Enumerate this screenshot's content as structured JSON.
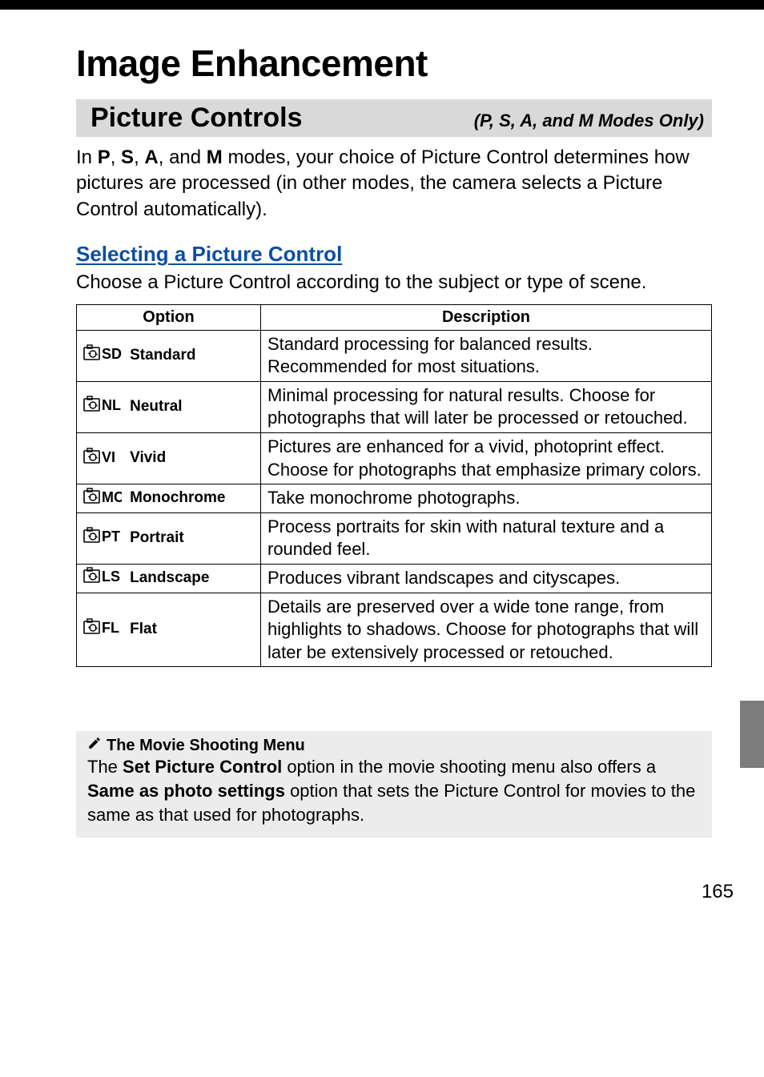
{
  "top_bar": {
    "color": "#000000",
    "height": 12
  },
  "chapter": {
    "title": "Image Enhancement"
  },
  "section": {
    "title": "Picture Controls",
    "subtitle": "(P, S, A, and M Modes Only)",
    "banner_bg": "#d9d9d9"
  },
  "intro": {
    "prefix": "In ",
    "modes": [
      "P",
      "S",
      "A",
      "M"
    ],
    "rest": " modes, your choice of Picture Control determines how pictures are processed (in other modes, the camera selects a Picture Control automatically)."
  },
  "subhead": {
    "title": "Selecting a Picture Control",
    "color": "#0d4f9f",
    "body": "Choose a Picture Control according to the subject or type of scene."
  },
  "table": {
    "header_option": "Option",
    "header_description": "Description",
    "rows": [
      {
        "icon_code": "SD",
        "label": "Standard",
        "desc": "Standard processing for balanced results. Recommended for most situations."
      },
      {
        "icon_code": "NL",
        "label": "Neutral",
        "desc": "Minimal processing for natural results.  Choose for photographs that will later be processed or retouched."
      },
      {
        "icon_code": "VI",
        "label": "Vivid",
        "desc": "Pictures are enhanced for a vivid, photoprint effect. Choose for photographs that emphasize primary colors."
      },
      {
        "icon_code": "MC",
        "label": "Monochrome",
        "desc": "Take monochrome photographs."
      },
      {
        "icon_code": "PT",
        "label": "Portrait",
        "desc": "Process portraits for skin with natural texture and a rounded feel."
      },
      {
        "icon_code": "LS",
        "label": "Landscape",
        "desc": "Produces vibrant landscapes and cityscapes."
      },
      {
        "icon_code": "FL",
        "label": "Flat",
        "desc": "Details are preserved over a wide tone range, from highlights to shadows. Choose for photographs that will later be extensively processed or retouched."
      }
    ]
  },
  "note": {
    "icon": "pencil-icon",
    "heading": "The Movie Shooting Menu",
    "body_parts": [
      {
        "t": "The ",
        "b": false
      },
      {
        "t": "Set Picture Control",
        "b": true
      },
      {
        "t": " option in the movie shooting menu also offers a ",
        "b": false
      },
      {
        "t": "Same as photo settings",
        "b": true
      },
      {
        "t": " option that sets the Picture Control for movies to the same as that used for photographs.",
        "b": false
      }
    ],
    "bg": "#ececec"
  },
  "side_tab": {
    "color": "#7c7c7c"
  },
  "page_number": "165",
  "fonts": {
    "body_size": 24,
    "chapter_size": 46,
    "section_size": 34
  }
}
